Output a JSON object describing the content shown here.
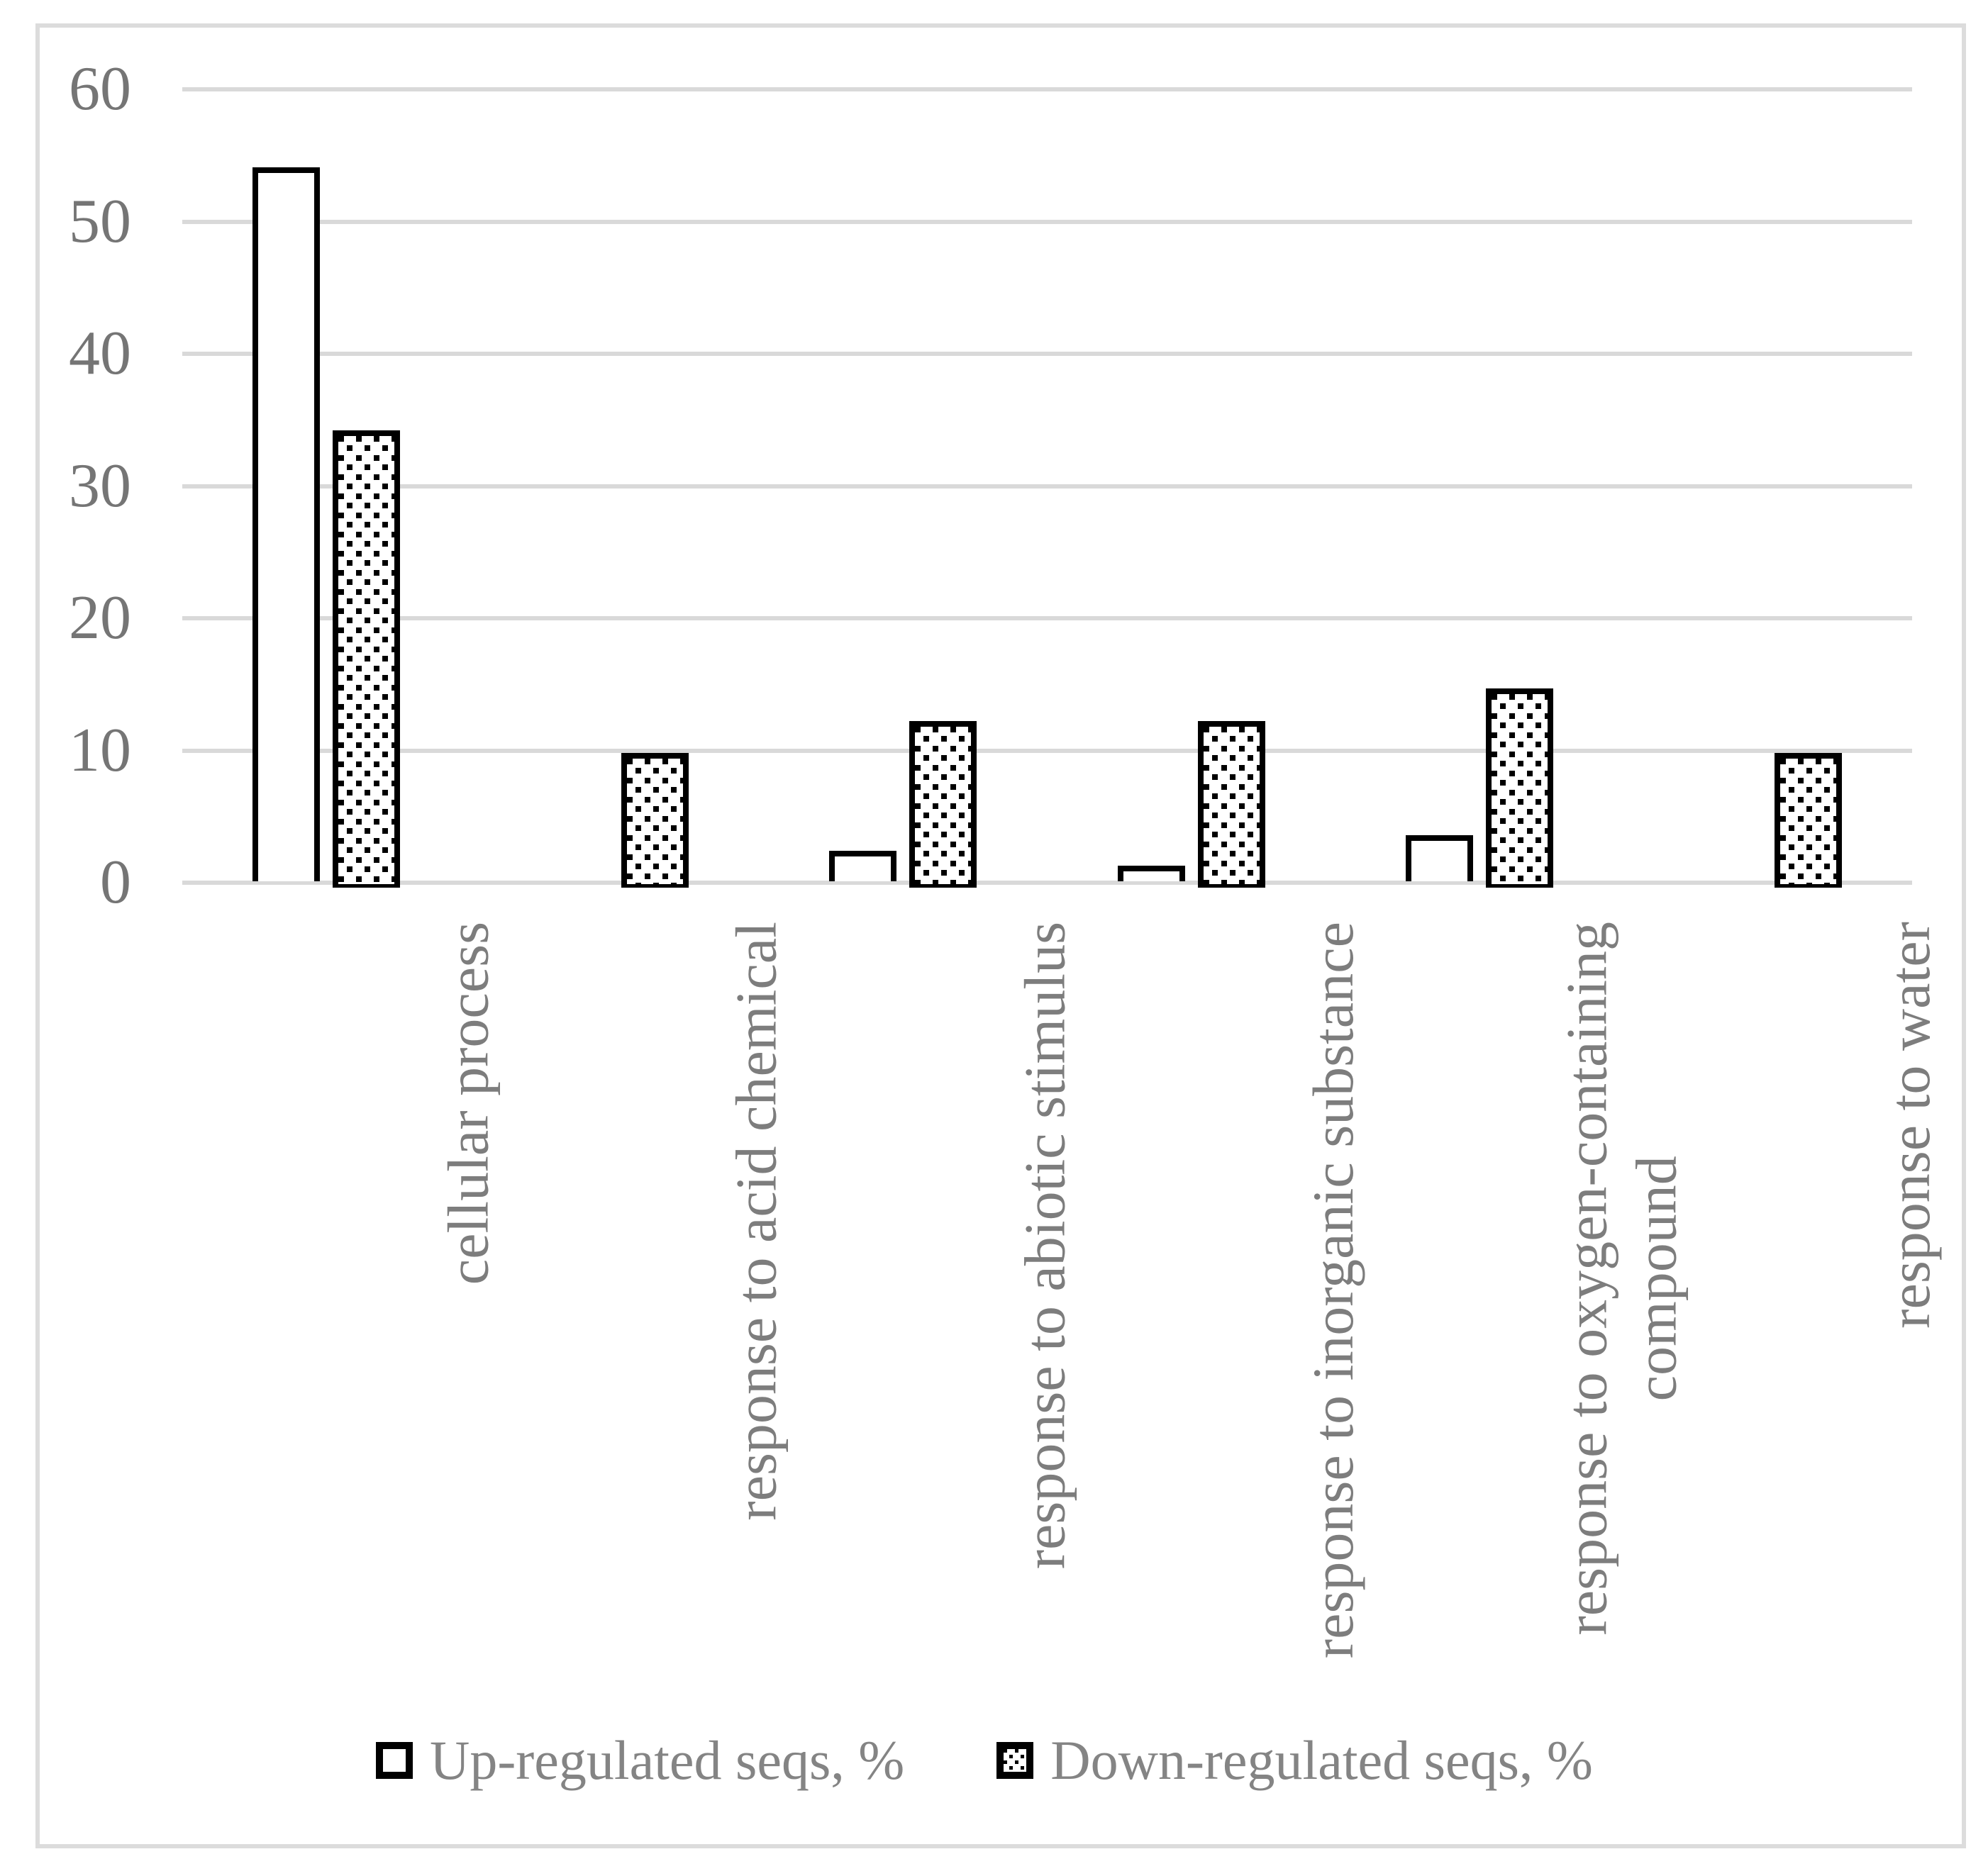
{
  "chart_data": {
    "type": "bar",
    "title": "",
    "xlabel": "",
    "ylabel": "",
    "categories": [
      "cellular process",
      "response to acid chemical",
      "response to abiotic stimulus",
      "response to inorganic substance",
      "response to oxygen-containing compound",
      "response to water"
    ],
    "label_lines": [
      [
        "cellular process"
      ],
      [
        "response to acid chemical"
      ],
      [
        "response to abiotic stimulus"
      ],
      [
        "response to inorganic substance"
      ],
      [
        "response to oxygen-containing",
        "compound"
      ],
      [
        "response to water"
      ]
    ],
    "series": [
      {
        "name": "Up-regulated seqs, %",
        "fill": "plain-white",
        "values": [
          54,
          0,
          2.3,
          1.2,
          3.5,
          0
        ]
      },
      {
        "name": "Down-regulated seqs, %",
        "fill": "dotted",
        "values": [
          34.2,
          9.8,
          12.2,
          12.2,
          14.7,
          9.8
        ]
      }
    ],
    "ylim": [
      0,
      60
    ],
    "yticks": [
      0,
      10,
      20,
      30,
      40,
      50,
      60
    ],
    "grid": true,
    "legend_position": "bottom"
  },
  "colors": {
    "bar_fill": "#ffffff",
    "bar_border": "#000000",
    "gridline": "#d9d9d9",
    "figure_border": "#dcdcdc",
    "axis_text": "#757575",
    "label_text": "#7d7d7d"
  }
}
